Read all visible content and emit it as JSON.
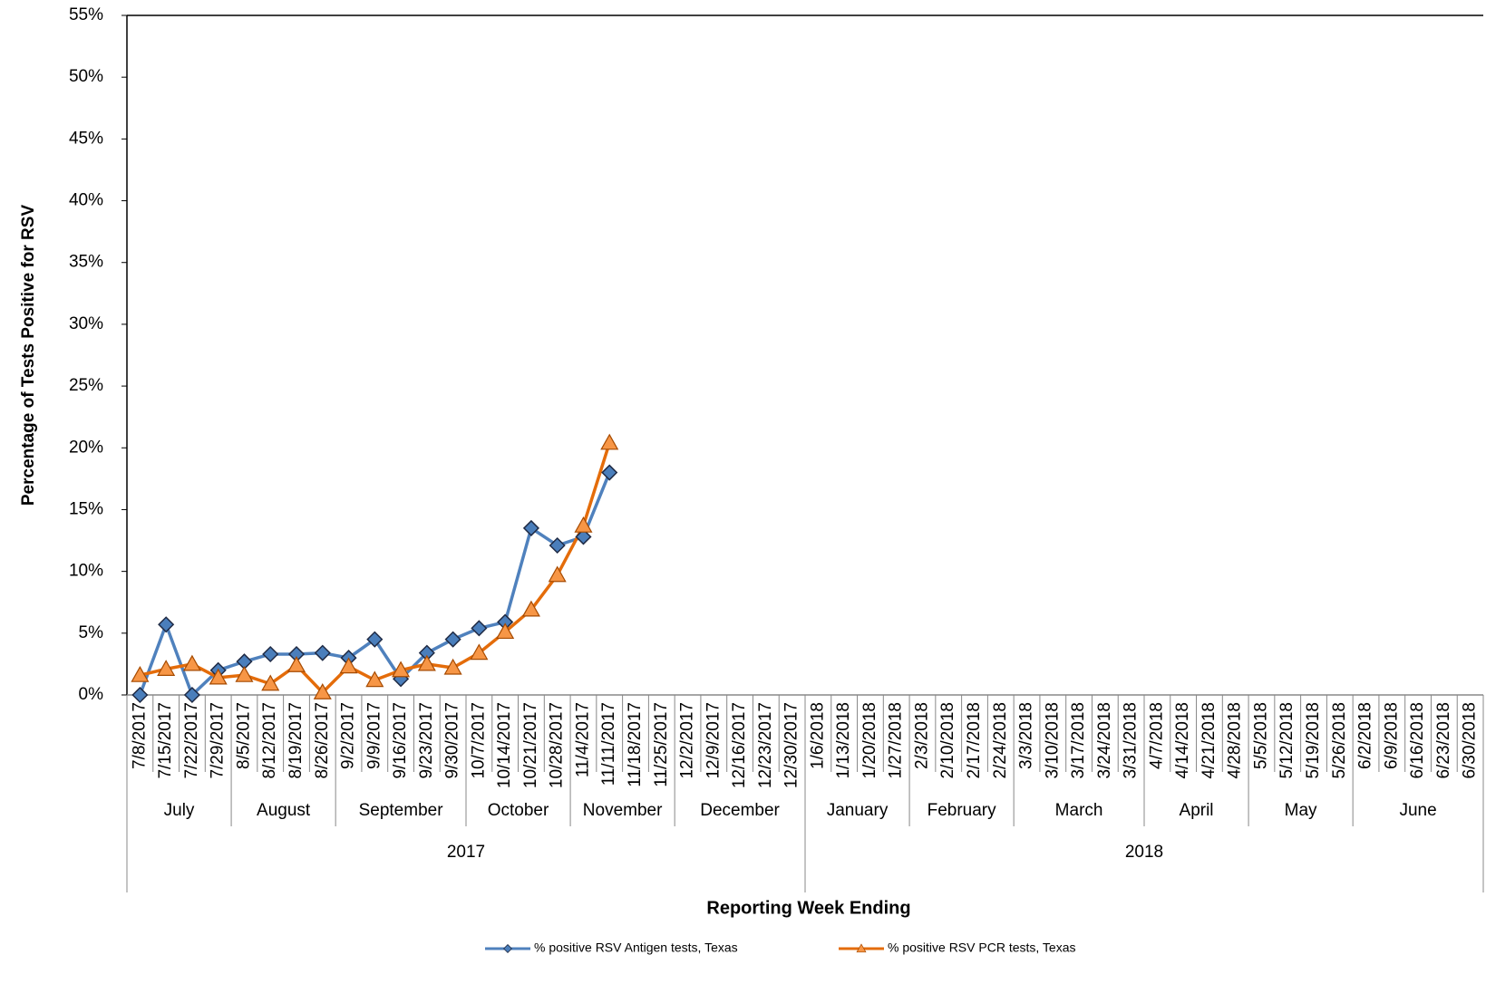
{
  "chart_data": {
    "type": "line",
    "y_label": "Percentage of Tests Positive for RSV",
    "x_label": "Reporting Week Ending",
    "categories": [
      "7/8/2017",
      "7/15/2017",
      "7/22/2017",
      "7/29/2017",
      "8/5/2017",
      "8/12/2017",
      "8/19/2017",
      "8/26/2017",
      "9/2/2017",
      "9/9/2017",
      "9/16/2017",
      "9/23/2017",
      "9/30/2017",
      "10/7/2017",
      "10/14/2017",
      "10/21/2017",
      "10/28/2017",
      "11/4/2017",
      "11/11/2017",
      "11/18/2017",
      "11/25/2017",
      "12/2/2017",
      "12/9/2017",
      "12/16/2017",
      "12/23/2017",
      "12/30/2017",
      "1/6/2018",
      "1/13/2018",
      "1/20/2018",
      "1/27/2018",
      "2/3/2018",
      "2/10/2018",
      "2/17/2018",
      "2/24/2018",
      "3/3/2018",
      "3/10/2018",
      "3/17/2018",
      "3/24/2018",
      "3/31/2018",
      "4/7/2018",
      "4/14/2018",
      "4/21/2018",
      "4/28/2018",
      "5/5/2018",
      "5/12/2018",
      "5/19/2018",
      "5/26/2018",
      "6/2/2018",
      "6/9/2018",
      "6/16/2018",
      "6/23/2018",
      "6/30/2018"
    ],
    "month_labels": [
      "July",
      "August",
      "September",
      "October",
      "November",
      "December",
      "January",
      "February",
      "March",
      "April",
      "May",
      "June"
    ],
    "year_labels": [
      "2017",
      "2018"
    ],
    "series": [
      {
        "name": "% positive RSV Antigen tests, Texas",
        "color": "#4f81bd",
        "marker_color": "#4a7ebb",
        "marker": "diamond",
        "values": [
          0,
          5.7,
          0,
          2.0,
          2.7,
          3.3,
          3.3,
          3.4,
          3.0,
          4.5,
          1.3,
          3.4,
          4.5,
          5.4,
          5.9,
          13.5,
          12.1,
          12.8,
          18.0,
          null,
          null,
          null,
          null,
          null,
          null,
          null,
          null,
          null,
          null,
          null,
          null,
          null,
          null,
          null,
          null,
          null,
          null,
          null,
          null,
          null,
          null,
          null,
          null,
          null,
          null,
          null,
          null,
          null,
          null,
          null,
          null,
          null
        ]
      },
      {
        "name": "% positive RSV PCR tests, Texas",
        "color": "#e46c0a",
        "marker_color": "#f79646",
        "marker": "triangle",
        "values": [
          1.6,
          2.1,
          2.5,
          1.4,
          1.6,
          0.9,
          2.4,
          0.2,
          2.3,
          1.2,
          2.0,
          2.5,
          2.2,
          3.4,
          5.1,
          6.9,
          9.7,
          13.7,
          20.4,
          null,
          null,
          null,
          null,
          null,
          null,
          null,
          null,
          null,
          null,
          null,
          null,
          null,
          null,
          null,
          null,
          null,
          null,
          null,
          null,
          null,
          null,
          null,
          null,
          null,
          null,
          null,
          null,
          null,
          null,
          null,
          null,
          null
        ]
      }
    ],
    "ylim": [
      0,
      55
    ],
    "yticks": [
      {
        "value": 0,
        "label": "0%"
      },
      {
        "value": 5,
        "label": "5%"
      },
      {
        "value": 10,
        "label": "10%"
      },
      {
        "value": 15,
        "label": "15%"
      },
      {
        "value": 20,
        "label": "20%"
      },
      {
        "value": 25,
        "label": "25%"
      },
      {
        "value": 30,
        "label": "30%"
      },
      {
        "value": 35,
        "label": "35%"
      },
      {
        "value": 40,
        "label": "40%"
      },
      {
        "value": 45,
        "label": "45%"
      },
      {
        "value": 50,
        "label": "50%"
      },
      {
        "value": 55,
        "label": "55%"
      }
    ]
  }
}
